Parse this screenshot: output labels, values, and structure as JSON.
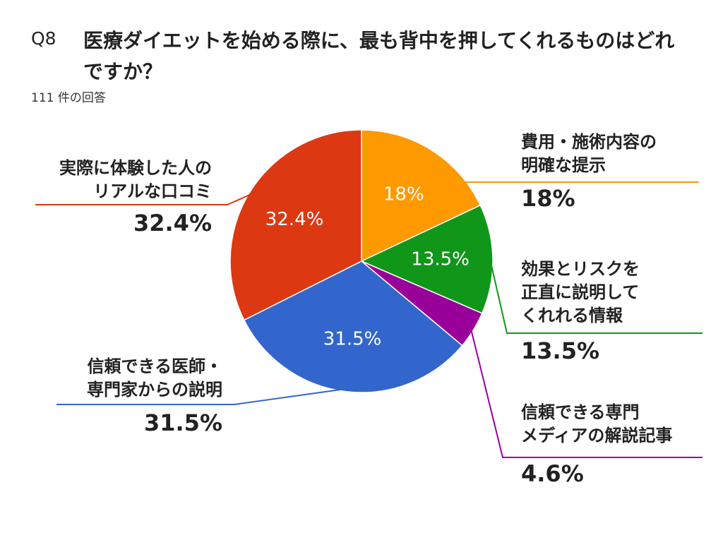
{
  "chart_data": {
    "type": "pie",
    "number": "Q8",
    "title": "医療ダイエットを始める際に、最も背中を押してくれるものはどれですか？",
    "subtitle": "111 件の回答",
    "categories": [
      "費用・施術内容の\n明確な提示",
      "効果とリスクを\n正直に説明して\nくれれる情報",
      "信頼できる専門\nメディアの解説記事",
      "信頼できる医師・\n専門家からの説明",
      "実際に体験した人の\nリアルな口コミ"
    ],
    "values": [
      18,
      13.5,
      4.6,
      31.5,
      32.4
    ],
    "value_labels": [
      "18%",
      "13.5%",
      "4.6%",
      "31.5%",
      "32.4%"
    ],
    "colors": [
      "#ff9900",
      "#109618",
      "#990099",
      "#3366cc",
      "#dc3912"
    ]
  }
}
